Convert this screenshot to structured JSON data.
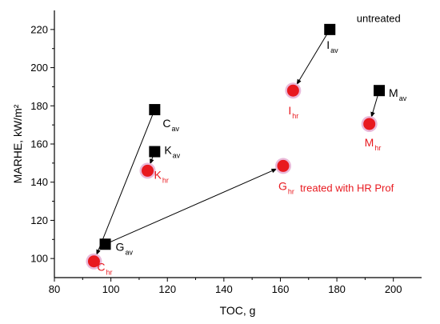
{
  "chart_data": {
    "type": "scatter",
    "xlabel": "TOC, g",
    "ylabel": "MARHE, kW/m²",
    "xlim": [
      80,
      210
    ],
    "ylim": [
      90,
      230
    ],
    "x_ticks": [
      80,
      100,
      120,
      140,
      160,
      180,
      200
    ],
    "y_ticks": [
      100,
      120,
      140,
      160,
      180,
      200,
      220
    ],
    "grid": false,
    "series": [
      {
        "marker": "square",
        "color": "#000000",
        "points": [
          {
            "label": "C",
            "sub": "av",
            "x": 115.5,
            "y": 178
          },
          {
            "label": "K",
            "sub": "av",
            "x": 115.5,
            "y": 156
          },
          {
            "label": "G",
            "sub": "av",
            "x": 98,
            "y": 107.5
          },
          {
            "label": "I",
            "sub": "av",
            "x": 177.5,
            "y": 220
          },
          {
            "label": "M",
            "sub": "av",
            "x": 195,
            "y": 188
          }
        ]
      },
      {
        "marker": "circle",
        "color": "#e8191f",
        "halo": "#e9b9d9",
        "points": [
          {
            "label": "C",
            "sub": "hr",
            "x": 94,
            "y": 98.5
          },
          {
            "label": "K",
            "sub": "hr",
            "x": 113,
            "y": 146
          },
          {
            "label": "G",
            "sub": "hr",
            "x": 161,
            "y": 148.5
          },
          {
            "label": "I",
            "sub": "hr",
            "x": 164.5,
            "y": 188
          },
          {
            "label": "M",
            "sub": "hr",
            "x": 191.5,
            "y": 170.5
          }
        ]
      }
    ],
    "arrows": [
      {
        "from": [
          115.5,
          178
        ],
        "to": [
          94,
          98.5
        ]
      },
      {
        "from": [
          115.5,
          156
        ],
        "to": [
          113,
          146
        ]
      },
      {
        "from": [
          98,
          107.5
        ],
        "to": [
          161,
          148.5
        ]
      },
      {
        "from": [
          177.5,
          220
        ],
        "to": [
          164.5,
          188
        ]
      },
      {
        "from": [
          195,
          188
        ],
        "to": [
          191.5,
          170.5
        ]
      }
    ],
    "annotations": [
      {
        "text": "untreated",
        "x": 187,
        "y": 224,
        "color": "#000000"
      },
      {
        "text": "treated with HR Prof",
        "x": 167,
        "y": 135,
        "color": "#e8191f"
      }
    ]
  }
}
